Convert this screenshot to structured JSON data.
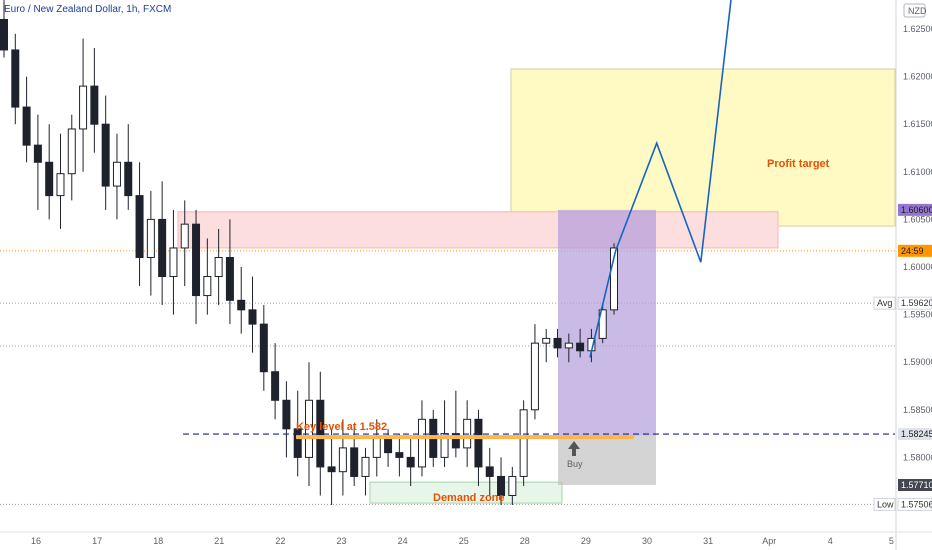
{
  "chart_data": {
    "type": "candlestick",
    "symbol": "Euro / New Zealand Dollar, 1h, FXCM",
    "currency": "NZD",
    "x_ticks": [
      "16",
      "17",
      "18",
      "21",
      "22",
      "23",
      "24",
      "25",
      "28",
      "29",
      "30",
      "31",
      "Apr",
      "4",
      "5"
    ],
    "y_ticks": [
      "1.62500",
      "1.62000",
      "1.61500",
      "1.61000",
      "1.60500",
      "1.60000",
      "1.59500",
      "1.59000",
      "1.58500",
      "1.58000",
      "1.57500"
    ],
    "ylim": [
      1.5742,
      1.6275
    ],
    "price_labels": [
      {
        "text": "1.60600",
        "value": 1.606,
        "bg": "#9575cd",
        "fg": "#1a1a1a"
      },
      {
        "text": "24:59",
        "value": 1.6017,
        "bg": "#ff9800",
        "fg": "#1a1a1a"
      },
      {
        "text": "Avg",
        "value": 1.5962,
        "bg": "#ffffff",
        "fg": "#333333"
      },
      {
        "text": "1.59620",
        "value": 1.5962,
        "bg": "#ffffff",
        "fg": "#333333"
      },
      {
        "text": "1.58245",
        "value": 1.58245,
        "bg": "#e0e3eb",
        "fg": "#1a1a1a"
      },
      {
        "text": "1.57710",
        "value": 1.5771,
        "bg": "#434651",
        "fg": "#ffffff"
      },
      {
        "text": "Low",
        "value": 1.57506,
        "bg": "#ffffff",
        "fg": "#333333"
      },
      {
        "text": "1.57506",
        "value": 1.57506,
        "bg": "#ffffff",
        "fg": "#333333"
      }
    ],
    "annotations": {
      "profit_target": {
        "label": "Profit target",
        "y_top": 1.6208,
        "y_bottom": 1.6043,
        "color": "#fff9c4"
      },
      "resistance_zone": {
        "y_top": 1.6058,
        "y_bottom": 1.602,
        "color": "#fcdede"
      },
      "key_level": {
        "label": "Key level at 1.582",
        "value": 1.58245
      },
      "demand_zone": {
        "label": "Demand zone",
        "y_top": 1.5774,
        "y_bottom": 1.5752
      },
      "buy": {
        "label": "Buy"
      },
      "position": {
        "entry": 1.5823,
        "target": 1.606,
        "stop": 1.5771
      }
    },
    "candles_ohlc": [
      [
        1.626,
        1.63,
        1.622,
        1.6228
      ],
      [
        1.6228,
        1.6245,
        1.615,
        1.6168
      ],
      [
        1.6168,
        1.62,
        1.611,
        1.6128
      ],
      [
        1.6128,
        1.616,
        1.606,
        1.611
      ],
      [
        1.611,
        1.615,
        1.605,
        1.6075
      ],
      [
        1.6075,
        1.614,
        1.604,
        1.6098
      ],
      [
        1.6098,
        1.616,
        1.607,
        1.6145
      ],
      [
        1.6145,
        1.624,
        1.61,
        1.619
      ],
      [
        1.619,
        1.623,
        1.612,
        1.615
      ],
      [
        1.615,
        1.618,
        1.606,
        1.6085
      ],
      [
        1.6085,
        1.614,
        1.605,
        1.611
      ],
      [
        1.611,
        1.615,
        1.606,
        1.6075
      ],
      [
        1.6075,
        1.611,
        1.598,
        1.601
      ],
      [
        1.601,
        1.608,
        1.597,
        1.605
      ],
      [
        1.605,
        1.609,
        1.596,
        1.599
      ],
      [
        1.599,
        1.606,
        1.595,
        1.602
      ],
      [
        1.602,
        1.607,
        1.598,
        1.6045
      ],
      [
        1.6045,
        1.606,
        1.594,
        1.597
      ],
      [
        1.597,
        1.603,
        1.595,
        1.599
      ],
      [
        1.599,
        1.604,
        1.596,
        1.601
      ],
      [
        1.601,
        1.605,
        1.594,
        1.5965
      ],
      [
        1.5965,
        1.6,
        1.593,
        1.5955
      ],
      [
        1.5955,
        1.599,
        1.591,
        1.594
      ],
      [
        1.594,
        1.596,
        1.587,
        1.589
      ],
      [
        1.589,
        1.592,
        1.584,
        1.586
      ],
      [
        1.586,
        1.588,
        1.58,
        1.583
      ],
      [
        1.583,
        1.587,
        1.578,
        1.58
      ],
      [
        1.58,
        1.59,
        1.577,
        1.586
      ],
      [
        1.586,
        1.589,
        1.576,
        1.579
      ],
      [
        1.579,
        1.583,
        1.575,
        1.5785
      ],
      [
        1.5785,
        1.584,
        1.576,
        1.581
      ],
      [
        1.581,
        1.5835,
        1.577,
        1.578
      ],
      [
        1.578,
        1.581,
        1.576,
        1.58
      ],
      [
        1.58,
        1.584,
        1.578,
        1.582
      ],
      [
        1.582,
        1.583,
        1.579,
        1.5805
      ],
      [
        1.5805,
        1.5825,
        1.578,
        1.58
      ],
      [
        1.58,
        1.582,
        1.577,
        1.579
      ],
      [
        1.579,
        1.586,
        1.578,
        1.584
      ],
      [
        1.584,
        1.585,
        1.579,
        1.58
      ],
      [
        1.58,
        1.586,
        1.579,
        1.5825
      ],
      [
        1.5825,
        1.587,
        1.58,
        1.581
      ],
      [
        1.581,
        1.586,
        1.579,
        1.584
      ],
      [
        1.584,
        1.585,
        1.577,
        1.579
      ],
      [
        1.579,
        1.581,
        1.576,
        1.578
      ],
      [
        1.578,
        1.58,
        1.575,
        1.576
      ],
      [
        1.576,
        1.579,
        1.575,
        1.578
      ],
      [
        1.578,
        1.586,
        1.577,
        1.585
      ],
      [
        1.585,
        1.594,
        1.584,
        1.592
      ],
      [
        1.592,
        1.5935,
        1.59,
        1.5925
      ],
      [
        1.5925,
        1.5935,
        1.5905,
        1.5915
      ],
      [
        1.5915,
        1.593,
        1.59,
        1.592
      ],
      [
        1.592,
        1.5935,
        1.5905,
        1.5912
      ],
      [
        1.5912,
        1.5935,
        1.59,
        1.5925
      ],
      [
        1.5925,
        1.596,
        1.592,
        1.5955
      ],
      [
        1.5955,
        1.6025,
        1.595,
        1.602
      ]
    ],
    "projection_path": [
      [
        1.5905,
        0.0
      ],
      [
        1.6017,
        0.18
      ],
      [
        1.613,
        0.47
      ],
      [
        1.6005,
        0.78
      ],
      [
        1.629,
        1.0
      ]
    ]
  }
}
